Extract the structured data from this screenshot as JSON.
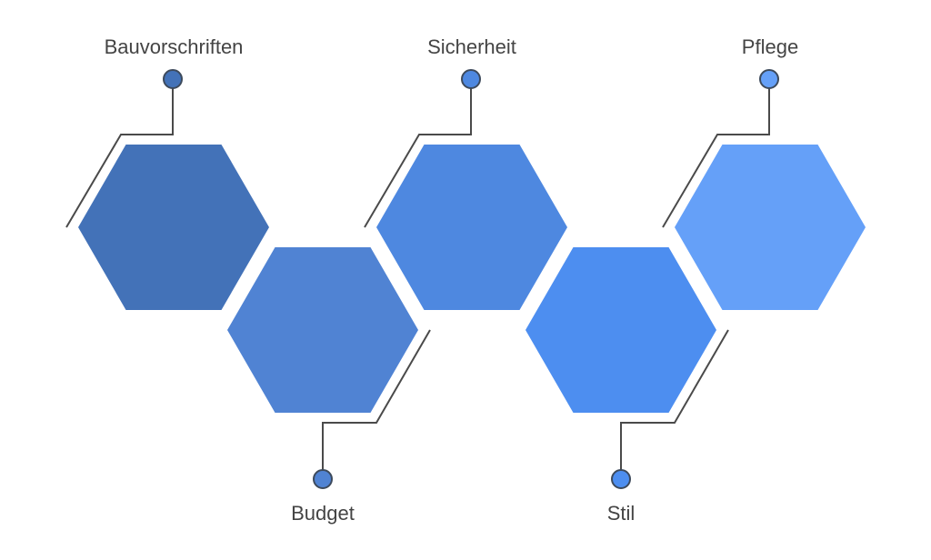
{
  "diagram": {
    "items": [
      {
        "label": "Bauvorschriften",
        "color": "#4372b8",
        "position": "top"
      },
      {
        "label": "Budget",
        "color": "#5083d3",
        "position": "bottom"
      },
      {
        "label": "Sicherheit",
        "color": "#4e88e0",
        "position": "top"
      },
      {
        "label": "Stil",
        "color": "#4d8ef0",
        "position": "bottom"
      },
      {
        "label": "Pflege",
        "color": "#65a0f8",
        "position": "top"
      }
    ]
  }
}
